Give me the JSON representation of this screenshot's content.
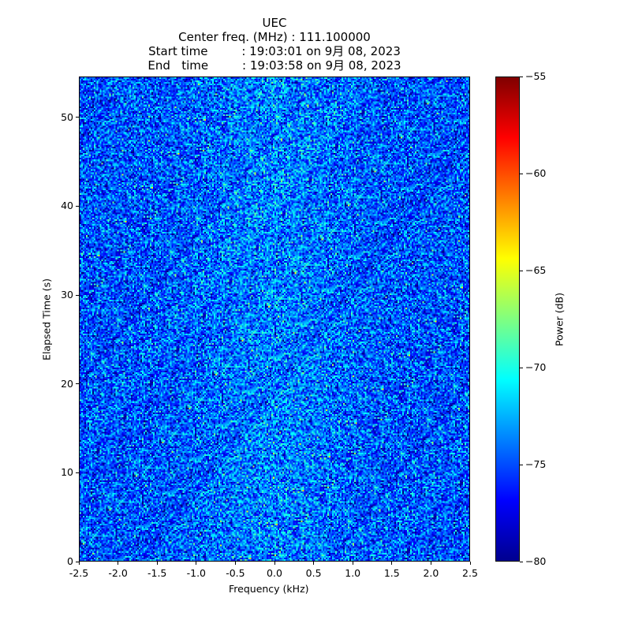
{
  "chart_data": {
    "type": "heatmap",
    "title_lines": [
      "UEC",
      "Center freq. (MHz) : 111.100000",
      "Start time         : 19:03:01 on 9月 08, 2023",
      "End   time         : 19:03:58 on 9月 08, 2023"
    ],
    "xlabel": "Frequency (kHz)",
    "ylabel": "Elapsed Time (s)",
    "xlim": [
      -2.5,
      2.5
    ],
    "ylim": [
      0,
      54.6
    ],
    "xticks": [
      "-2.5",
      "-2.0",
      "-1.5",
      "-1.0",
      "-0.5",
      "0.0",
      "0.5",
      "1.0",
      "1.5",
      "2.0",
      "2.5"
    ],
    "yticks": [
      "0",
      "10",
      "20",
      "30",
      "40",
      "50"
    ],
    "colorbar": {
      "label": "Power (dB)",
      "range": [
        -80,
        -55
      ],
      "ticks": [
        "−80",
        "−75",
        "−70",
        "−65",
        "−60",
        "−55"
      ],
      "colormap": "jet"
    },
    "noise_mean_db": -75,
    "noise_std_db": 2.5
  }
}
